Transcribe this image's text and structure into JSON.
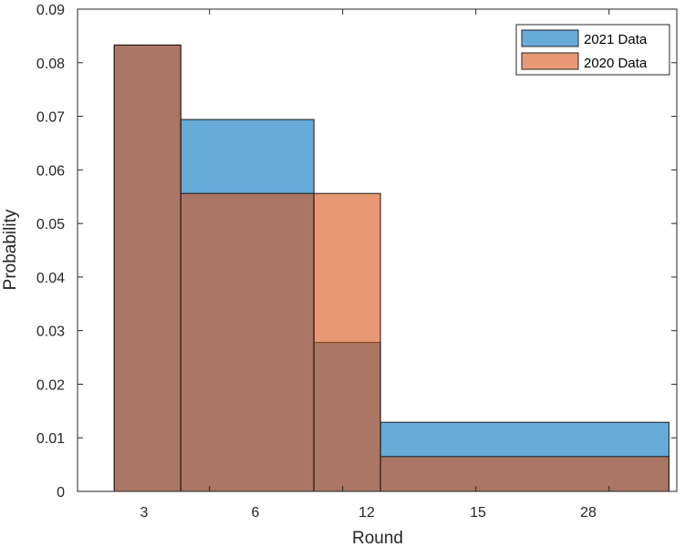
{
  "chart_data": {
    "type": "histogram",
    "xlabel": "Round",
    "ylabel": "Probability",
    "x_tick_labels": [
      "3",
      "6",
      "12",
      "15",
      "28"
    ],
    "ylim": [
      0,
      0.09
    ],
    "y_ticks": [
      0,
      0.01,
      0.02,
      0.03,
      0.04,
      0.05,
      0.06,
      0.07,
      0.08,
      0.09
    ],
    "y_tick_labels": [
      "0",
      "0.01",
      "0.02",
      "0.03",
      "0.04",
      "0.05",
      "0.06",
      "0.07",
      "0.08",
      "0.09"
    ],
    "legend_position": "top-right",
    "series": [
      {
        "name": "2021 Data",
        "color": "#0072BD",
        "bins": [
          {
            "start": 1.65,
            "end": 4.65,
            "value": 0.0833
          },
          {
            "start": 4.65,
            "end": 10.65,
            "value": 0.0694
          },
          {
            "start": 10.65,
            "end": 13.65,
            "value": 0.0278
          },
          {
            "start": 13.65,
            "end": 26.65,
            "value": 0.0129
          }
        ]
      },
      {
        "name": "2020 Data",
        "color": "#D95319",
        "bins": [
          {
            "start": 1.65,
            "end": 4.65,
            "value": 0.0833
          },
          {
            "start": 4.65,
            "end": 10.65,
            "value": 0.0556
          },
          {
            "start": 10.65,
            "end": 13.65,
            "value": 0.0556
          },
          {
            "start": 13.65,
            "end": 26.65,
            "value": 0.0065
          }
        ]
      }
    ]
  }
}
